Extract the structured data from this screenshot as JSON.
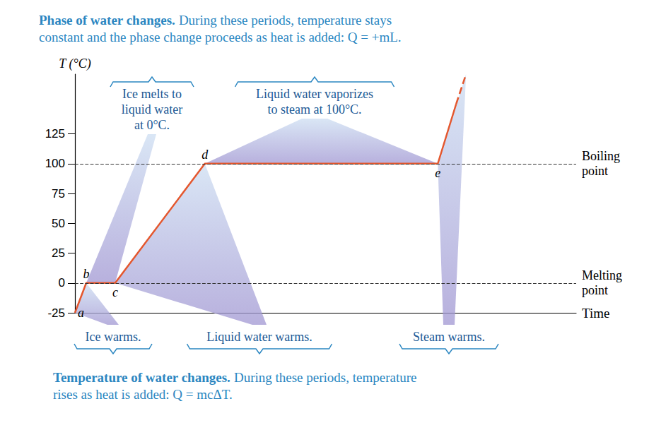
{
  "chart_data": {
    "type": "line",
    "caption_top": {
      "heading": "Phase of water changes.",
      "text": "During these periods, temperature stays\nconstant and the phase change proceeds as heat is added: Q = +mL."
    },
    "caption_bottom": {
      "heading": "Temperature of water changes.",
      "text": "During these periods, temperature\nrises as heat is added: Q = mcΔT."
    },
    "x_label": "Time",
    "y_label": "T (°C)",
    "xlim": [
      0,
      71
    ],
    "xticks": [],
    "ylim": [
      -25,
      175
    ],
    "yticks": [
      -25,
      0,
      25,
      50,
      75,
      100,
      125
    ],
    "grid": false,
    "tick_labels": "y",
    "series": [
      {
        "x": [
          0,
          1.6,
          5.7,
          18.4,
          51.4,
          54.0
        ],
        "values": [
          -25,
          0,
          0,
          100,
          100,
          150
        ],
        "point_labels": [
          "a",
          "b",
          "c",
          "d",
          "e",
          null
        ],
        "color": "#e4572e",
        "line_style": "solid",
        "marker": "none"
      },
      {
        "x": [
          54.0,
          55.4
        ],
        "values": [
          150,
          175
        ],
        "color": "#e4572e",
        "line_style": "dashed",
        "marker": "none"
      }
    ],
    "reference_lines": [
      {
        "value": 100,
        "label": "Boiling\npoint"
      },
      {
        "value": 0,
        "label": "Melting\npoint"
      }
    ],
    "phase_labels": [
      "Ice melts to\nliquid water\nat 0°C.",
      "Liquid water vaporizes\nto steam at 100°C."
    ],
    "warming_labels": [
      "Ice warms.",
      "Liquid water warms.",
      "Steam warms."
    ]
  }
}
